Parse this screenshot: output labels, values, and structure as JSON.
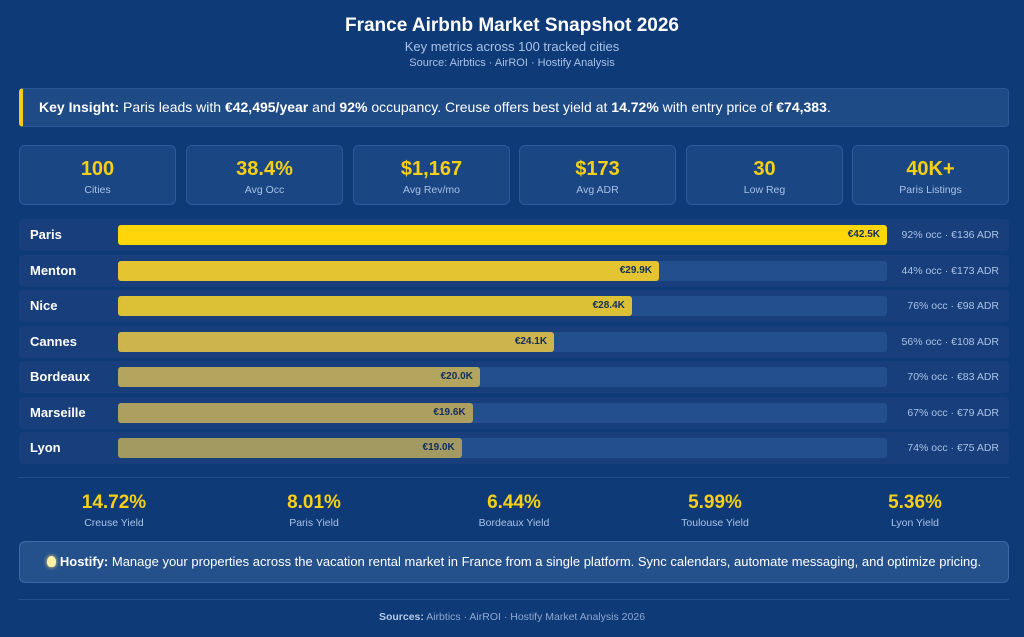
{
  "header": {
    "title": "France Airbnb Market Snapshot 2026",
    "subtitle": "Key metrics across 100 tracked cities",
    "source": "Source: Airbtics · AirROI · Hostify Analysis"
  },
  "insight": {
    "label": "Key Insight:",
    "t1": " Paris leads with ",
    "b1": "€42,495/year",
    "t2": " and ",
    "b2": "92%",
    "t3": " occupancy. Creuse offers best yield at ",
    "b3": "14.72%",
    "t4": " with entry price of ",
    "b4": "€74,383",
    "t5": "."
  },
  "stats": [
    {
      "value": "100",
      "label": "Cities"
    },
    {
      "value": "38.4%",
      "label": "Avg Occ"
    },
    {
      "value": "$1,167",
      "label": "Avg Rev/mo"
    },
    {
      "value": "$173",
      "label": "Avg ADR"
    },
    {
      "value": "30",
      "label": "Low Reg"
    },
    {
      "value": "40K+",
      "label": "Paris Listings"
    }
  ],
  "chart_data": {
    "type": "bar",
    "orientation": "horizontal",
    "xlim": [
      0,
      42.5
    ],
    "unit": "€K",
    "categories": [
      "Paris",
      "Menton",
      "Nice",
      "Cannes",
      "Bordeaux",
      "Marseille",
      "Lyon"
    ],
    "values": [
      42.5,
      29.9,
      28.4,
      24.1,
      20.0,
      19.6,
      19.0
    ],
    "value_labels": [
      "€42.5K",
      "€29.9K",
      "€28.4K",
      "€24.1K",
      "€20.0K",
      "€19.6K",
      "€19.0K"
    ],
    "annotations": [
      "92% occ · €136 ADR",
      "44% occ · €173 ADR",
      "76% occ · €98 ADR",
      "56% occ · €108 ADR",
      "70% occ · €83 ADR",
      "67% occ · €79 ADR",
      "74% occ · €75 ADR"
    ],
    "colors": [
      "#ffd60a",
      "#e4c531",
      "#dcc136",
      "#cdb44d",
      "#b3a55e",
      "#ad9f60",
      "#a39a62"
    ],
    "title": "",
    "xlabel": "",
    "ylabel": ""
  },
  "yields": [
    {
      "value": "14.72%",
      "label": "Creuse Yield"
    },
    {
      "value": "8.01%",
      "label": "Paris Yield"
    },
    {
      "value": "6.44%",
      "label": "Bordeaux Yield"
    },
    {
      "value": "5.99%",
      "label": "Toulouse Yield"
    },
    {
      "value": "5.36%",
      "label": "Lyon Yield"
    }
  ],
  "promo": {
    "icon": "lightbulb-icon",
    "label": "Hostify:",
    "text": " Manage your properties across the vacation rental market in France from a single platform. Sync calendars, automate messaging, and optimize pricing."
  },
  "footer": {
    "label": "Sources:",
    "text": " Airbtics · AirROI · Hostify Market Analysis 2026"
  },
  "colors": {
    "background": "#0f3a78",
    "accent": "#f7cf17",
    "muted_text": "#a9c2e6"
  }
}
